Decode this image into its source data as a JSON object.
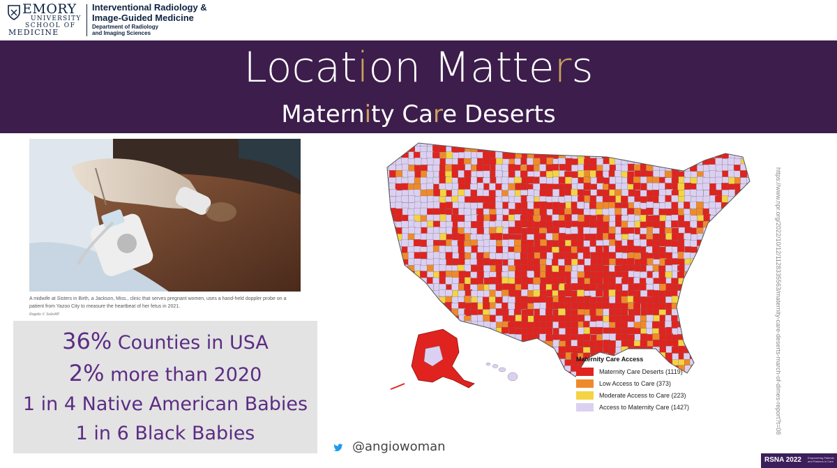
{
  "header": {
    "logo_word": "EMORY",
    "logo_university": "UNIVERSITY",
    "logo_school": "SCHOOL OF",
    "logo_medicine": "MEDICINE",
    "dept_line1": "Interventional Radiology &",
    "dept_line2": "Image-Guided Medicine",
    "dept_sub1": "Department of Radiology",
    "dept_sub2": "and Imaging Sciences"
  },
  "title": {
    "parts": [
      "Locat",
      "i",
      "on Matte",
      "r",
      "s"
    ],
    "subtitle_parts": [
      "Matern",
      "i",
      "ty Ca",
      "r",
      "e Deserts"
    ]
  },
  "photo": {
    "caption_line1": "A midwife at Sisters in Birth, a Jackson, Miss., clinic that serves pregnant women, uses a hand-held doppler probe on a",
    "caption_line2": "patient from Yazoo City to measure the heartbeat of her fetus in 2021.",
    "credit": "Rogelio V. Solis/AP"
  },
  "stats": [
    {
      "highlight": "36%",
      "text": " Counties in USA"
    },
    {
      "highlight": "2%",
      "text": " more than 2020"
    },
    {
      "highlight": "1 in 4",
      "text": " Native American Babies"
    },
    {
      "highlight": "1 in 6",
      "text": " Black Babies"
    }
  ],
  "legend": {
    "title": "Maternity Care Access",
    "items": [
      {
        "label": "Maternity Care Deserts (1119)",
        "color": "#e0231e"
      },
      {
        "label": "Low Access to Care (373)",
        "color": "#ef8a2b"
      },
      {
        "label": "Moderate Access to Care (223)",
        "color": "#f4d345"
      },
      {
        "label": "Access to Maternity Care (1427)",
        "color": "#dcd0f2"
      }
    ]
  },
  "source_url": "https://www.npr.org/2022/10/12/1128335563/maternity-care-deserts-march-of-dimes-report?t=08",
  "twitter": {
    "handle": "@angiowoman",
    "icon": "twitter-bird-icon"
  },
  "rsna": {
    "label": "RSNA 2022",
    "tag_line1": "Empowering Patients",
    "tag_line2": "and Partners in Care"
  },
  "colors": {
    "title_band": "#3d1d4c",
    "title_accent": "#c9a35c",
    "stat_text": "#5b2c83",
    "deserts": "#e0231e",
    "low": "#ef8a2b",
    "moderate": "#f4d345",
    "access": "#dcd0f2"
  }
}
